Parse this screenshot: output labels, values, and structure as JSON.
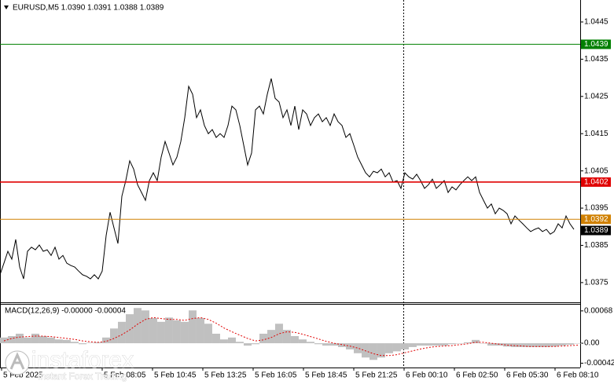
{
  "chart_data": [
    {
      "type": "line",
      "title": "EURUSD,M5  1.0390 1.0391 1.0388 1.0389",
      "color": "#000000",
      "xlim": [
        0,
        369
      ],
      "ylim": [
        1.03697,
        1.04509
      ],
      "yticks": [
        1.0375,
        1.0385,
        1.0395,
        1.0405,
        1.0415,
        1.0425,
        1.0435,
        1.0445
      ],
      "levels": [
        {
          "value": 1.0439,
          "color": "#008000"
        },
        {
          "value": 1.0402,
          "color": "#e00000"
        },
        {
          "value": 1.0392,
          "color": "#d08000"
        }
      ],
      "last_price": 1.0389,
      "x": [
        0,
        2.5,
        5,
        7.5,
        10,
        12.5,
        15,
        17.5,
        20,
        22.5,
        25,
        27.5,
        30,
        32.5,
        35,
        37.5,
        40,
        42.5,
        45,
        47.5,
        50,
        52.5,
        55,
        57.5,
        60,
        62.5,
        65,
        67.5,
        70,
        72.5,
        75,
        77.5,
        80,
        82.5,
        85,
        87.5,
        90,
        92.5,
        95,
        97.5,
        100,
        102.5,
        105,
        107.5,
        110,
        112.5,
        115,
        117.5,
        120,
        122.5,
        125,
        127.5,
        130,
        132.5,
        135,
        137.5,
        140,
        142.5,
        145,
        147.5,
        150,
        152.5,
        155,
        157.5,
        160,
        162.5,
        165,
        167.5,
        170,
        172.5,
        175,
        177.5,
        180,
        182.5,
        185,
        187.5,
        190,
        192.5,
        195,
        197.5,
        200,
        202.5,
        205,
        207.5,
        210,
        212.5,
        215,
        217.5,
        220,
        222.5,
        225,
        227.5,
        230,
        232.5,
        235,
        237.5,
        240,
        242.5,
        245,
        247.5,
        250,
        252.5,
        255,
        257.5,
        260,
        262.5,
        265,
        267.5,
        270,
        272.5,
        275,
        277.5,
        280,
        282.5,
        285,
        287.5,
        290,
        292.5,
        295,
        297.5,
        300,
        302.5,
        305,
        307.5,
        310,
        312.5,
        315,
        317.5,
        320,
        322.5,
        325,
        327.5,
        330,
        332.5,
        335,
        337.5,
        340,
        342.5,
        345,
        347.5,
        350,
        352.5,
        355,
        357.5,
        360,
        362.5,
        365
      ],
      "values": [
        1.03771,
        1.03802,
        1.03834,
        1.03813,
        1.03866,
        1.03792,
        1.0376,
        1.03834,
        1.03845,
        1.03838,
        1.03851,
        1.03834,
        1.03838,
        1.03823,
        1.03845,
        1.03813,
        1.03823,
        1.03802,
        1.03796,
        1.03792,
        1.03781,
        1.03771,
        1.03767,
        1.0376,
        1.03771,
        1.0376,
        1.03781,
        1.03876,
        1.03939,
        1.03897,
        1.03855,
        1.03982,
        1.04024,
        1.04077,
        1.04055,
        1.04013,
        1.03992,
        1.03971,
        1.04024,
        1.04045,
        1.04024,
        1.04087,
        1.04129,
        1.04098,
        1.04066,
        1.04087,
        1.04129,
        1.04193,
        1.04277,
        1.04256,
        1.04193,
        1.04214,
        1.04172,
        1.0415,
        1.04161,
        1.0414,
        1.0415,
        1.0414,
        1.04172,
        1.04224,
        1.04214,
        1.04172,
        1.04119,
        1.04066,
        1.04098,
        1.04214,
        1.04224,
        1.04203,
        1.04256,
        1.04298,
        1.04245,
        1.04235,
        1.04193,
        1.04214,
        1.04172,
        1.04224,
        1.04161,
        1.04214,
        1.04203,
        1.04172,
        1.04193,
        1.04203,
        1.04182,
        1.04193,
        1.04172,
        1.04203,
        1.04182,
        1.04172,
        1.0414,
        1.0415,
        1.04119,
        1.04087,
        1.04066,
        1.04045,
        1.04034,
        1.04049,
        1.04045,
        1.04055,
        1.04034,
        1.04045,
        1.0402,
        1.04024,
        1.04003,
        1.04045,
        1.04034,
        1.04028,
        1.04041,
        1.04024,
        1.04003,
        1.04013,
        1.04028,
        1.04003,
        1.04013,
        1.04024,
        1.03992,
        1.04007,
        1.03999,
        1.04013,
        1.04024,
        1.04034,
        1.04024,
        1.04034,
        1.03992,
        1.03971,
        1.0395,
        1.03961,
        1.03935,
        1.0395,
        1.03944,
        1.03935,
        1.03908,
        1.03929,
        1.03918,
        1.03908,
        1.03897,
        1.03887,
        1.03893,
        1.03897,
        1.03887,
        1.03893,
        1.0388,
        1.03887,
        1.03908,
        1.03897,
        1.03929,
        1.03908,
        1.03893
      ]
    },
    {
      "type": "macd",
      "title": "MACD(12,26,9) -0.00000 -0.00004",
      "histogram_color": "#c0c0c0",
      "signal_color": "#e00000",
      "xlim": [
        0,
        369
      ],
      "ylim": [
        -0.00051,
        0.00081
      ],
      "yticks": [
        -0.00042,
        {
          "value": 0,
          "label": "0.00"
        },
        0.00068
      ],
      "xticks": [
        {
          "value": 1,
          "label": "5 Feb 2025"
        },
        {
          "value": 65,
          "label": "5 Feb 08:05"
        },
        {
          "value": 97,
          "label": "5 Feb 10:45"
        },
        {
          "value": 129,
          "label": "5 Feb 13:25"
        },
        {
          "value": 161,
          "label": "5 Feb 16:05"
        },
        {
          "value": 193,
          "label": "5 Feb 18:45"
        },
        {
          "value": 225,
          "label": "5 Feb 21:25"
        },
        {
          "value": 257,
          "label": "6 Feb 00:10"
        },
        {
          "value": 289,
          "label": "6 Feb 02:50"
        },
        {
          "value": 321,
          "label": "6 Feb 05:30"
        },
        {
          "value": 353,
          "label": "6 Feb 08:10"
        }
      ],
      "x": [
        0,
        5,
        10,
        15,
        20,
        25,
        30,
        35,
        40,
        45,
        50,
        55,
        60,
        65,
        70,
        75,
        80,
        85,
        90,
        95,
        100,
        105,
        110,
        115,
        120,
        125,
        130,
        135,
        140,
        145,
        150,
        155,
        160,
        165,
        170,
        175,
        180,
        185,
        190,
        195,
        200,
        205,
        210,
        215,
        220,
        225,
        230,
        235,
        240,
        245,
        250,
        255,
        260,
        265,
        270,
        275,
        280,
        285,
        290,
        295,
        300,
        305,
        310,
        315,
        320,
        325,
        330,
        335,
        340,
        345,
        350,
        355,
        360,
        365
      ],
      "histogram": [
        0.00012,
        0.00015,
        0.0002,
        0.00012,
        0.0002,
        0.00015,
        0.00012,
        8e-05,
        7e-05,
        3e-05,
        -2e-05,
        1e-05,
        2e-05,
        0.00012,
        0.00031,
        0.00045,
        0.00061,
        0.00074,
        0.00069,
        0.00053,
        0.00045,
        0.00054,
        0.00048,
        0.00045,
        0.00069,
        0.00053,
        0.00041,
        0.0002,
        8e-05,
        0.00012,
        3e-05,
        -5e-05,
        -2e-05,
        0.0002,
        0.00028,
        0.00041,
        0.00028,
        0.00015,
        8e-05,
        3e-05,
        -2e-05,
        -5e-05,
        -5e-05,
        -8e-05,
        -0.00013,
        -0.00021,
        -0.0003,
        -0.00035,
        -0.0003,
        -0.00021,
        -0.00017,
        -0.00013,
        -8e-05,
        -5e-05,
        -5e-05,
        -5e-05,
        -5e-05,
        -2e-05,
        0,
        2e-05,
        7e-05,
        0,
        -5e-05,
        -5e-05,
        -7e-05,
        -8e-05,
        -8e-05,
        -8e-05,
        -8e-05,
        -8e-05,
        -7e-05,
        -5e-05,
        -3e-05,
        0
      ],
      "signal": [
        5e-05,
        0.0001,
        0.00013,
        0.00014,
        0.00015,
        0.00015,
        0.00014,
        0.00012,
        0.0001,
        8e-05,
        5e-05,
        3e-05,
        2e-05,
        4e-05,
        0.0001,
        0.00018,
        0.00028,
        0.0004,
        0.0005,
        0.00054,
        0.00052,
        0.0005,
        0.0005,
        0.00048,
        0.00052,
        0.00054,
        0.0005,
        0.00042,
        0.00032,
        0.00024,
        0.00017,
        0.0001,
        5e-05,
        7e-05,
        0.00012,
        0.0002,
        0.00024,
        0.00023,
        0.00019,
        0.00014,
        9e-05,
        4e-05,
        0,
        -3e-05,
        -6e-05,
        -0.0001,
        -0.00016,
        -0.00022,
        -0.00026,
        -0.00026,
        -0.00024,
        -0.0002,
        -0.00016,
        -0.00012,
        -9e-05,
        -7e-05,
        -6e-05,
        -5e-05,
        -3e-05,
        -1e-05,
        2e-05,
        2e-05,
        0,
        -2e-05,
        -4e-05,
        -5e-05,
        -6e-05,
        -7e-05,
        -7e-05,
        -7e-05,
        -7e-05,
        -6e-05,
        -5e-05,
        -4e-05
      ]
    }
  ],
  "watermark": {
    "brand": "instaforex",
    "tagline": "Instant Forex Trading"
  }
}
